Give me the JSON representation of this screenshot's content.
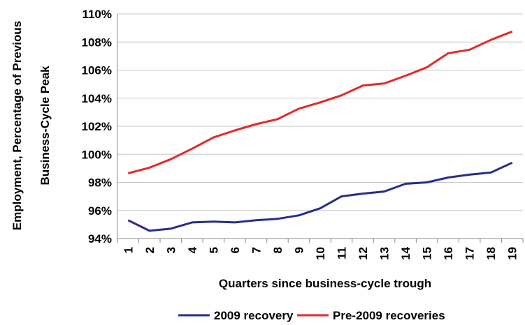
{
  "chart_data": {
    "type": "line",
    "xlabel": "Quarters since business-cycle trough",
    "ylabel": "Employment, Percentage of Previous Business-Cycle Peak",
    "ylabel_lines": [
      "Employment, Percentage of Previous",
      "Business-Cycle Peak"
    ],
    "x": [
      1,
      2,
      3,
      4,
      5,
      6,
      7,
      8,
      9,
      10,
      11,
      12,
      13,
      14,
      15,
      16,
      17,
      18,
      19
    ],
    "x_tick_labels": [
      "1",
      "2",
      "3",
      "4",
      "5",
      "6",
      "7",
      "8",
      "9",
      "10",
      "11",
      "12",
      "13",
      "14",
      "15",
      "16",
      "17",
      "18",
      "19"
    ],
    "ylim": [
      94,
      110
    ],
    "y_ticks": [
      94,
      96,
      98,
      100,
      102,
      104,
      106,
      108,
      110
    ],
    "y_tick_labels": [
      "94%",
      "96%",
      "98%",
      "100%",
      "102%",
      "104%",
      "106%",
      "108%",
      "110%"
    ],
    "grid": "horizontal",
    "legend_position": "bottom",
    "series": [
      {
        "name": "2009 recovery",
        "color": "#2b2b8c",
        "values": [
          95.3,
          94.55,
          94.7,
          95.15,
          95.2,
          95.15,
          95.3,
          95.4,
          95.65,
          96.15,
          97.0,
          97.2,
          97.35,
          97.9,
          98.0,
          98.35,
          98.55,
          98.7,
          99.4
        ]
      },
      {
        "name": "Pre-2009 recoveries",
        "color": "#e32a2a",
        "values": [
          98.65,
          99.05,
          99.65,
          100.4,
          101.2,
          101.7,
          102.15,
          102.5,
          103.25,
          103.7,
          104.2,
          104.9,
          105.05,
          105.6,
          106.2,
          107.2,
          107.45,
          108.15,
          108.75
        ]
      }
    ]
  }
}
